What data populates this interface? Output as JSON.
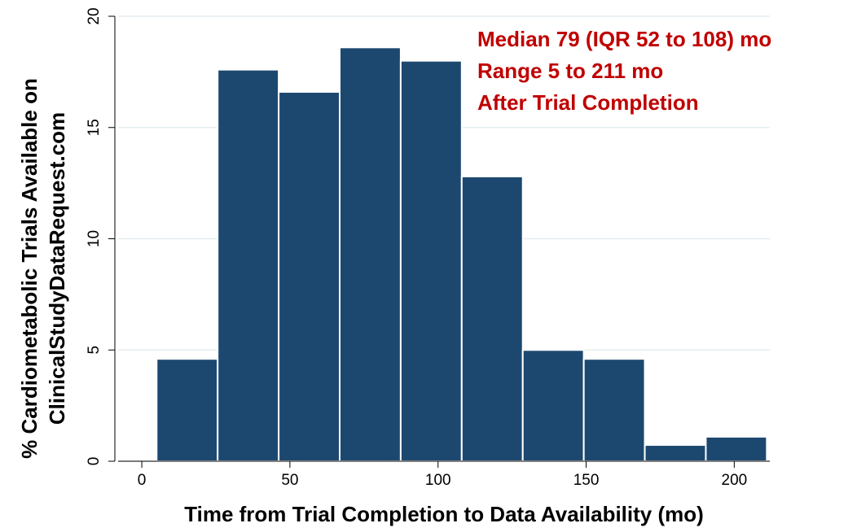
{
  "chart_data": {
    "type": "histogram",
    "xlabel": "Time from Trial Completion to Data Availability (mo)",
    "ylabel": [
      "% Cardiometabolic Trials Available on",
      "ClinicalStudyDataRequest.com"
    ],
    "annotations": [
      "Median 79 (IQR 52 to 108) mo",
      "Range 5 to 211 mo",
      "After Trial Completion"
    ],
    "annotation_color": "#c00000",
    "bins": [
      5,
      25.6,
      46.2,
      66.8,
      87.4,
      108,
      128.6,
      149.2,
      169.8,
      190.4,
      211
    ],
    "counts": [
      4.6,
      17.6,
      16.6,
      18.6,
      18.0,
      12.8,
      5.0,
      4.6,
      0.73,
      1.1
    ],
    "color": "#1c4870",
    "xlim": [
      -8,
      212
    ],
    "xticks": [
      0,
      50,
      100,
      150,
      200
    ],
    "ylim": [
      0,
      20
    ],
    "yticks": [
      0,
      5,
      10,
      15,
      20
    ],
    "grid": true
  }
}
